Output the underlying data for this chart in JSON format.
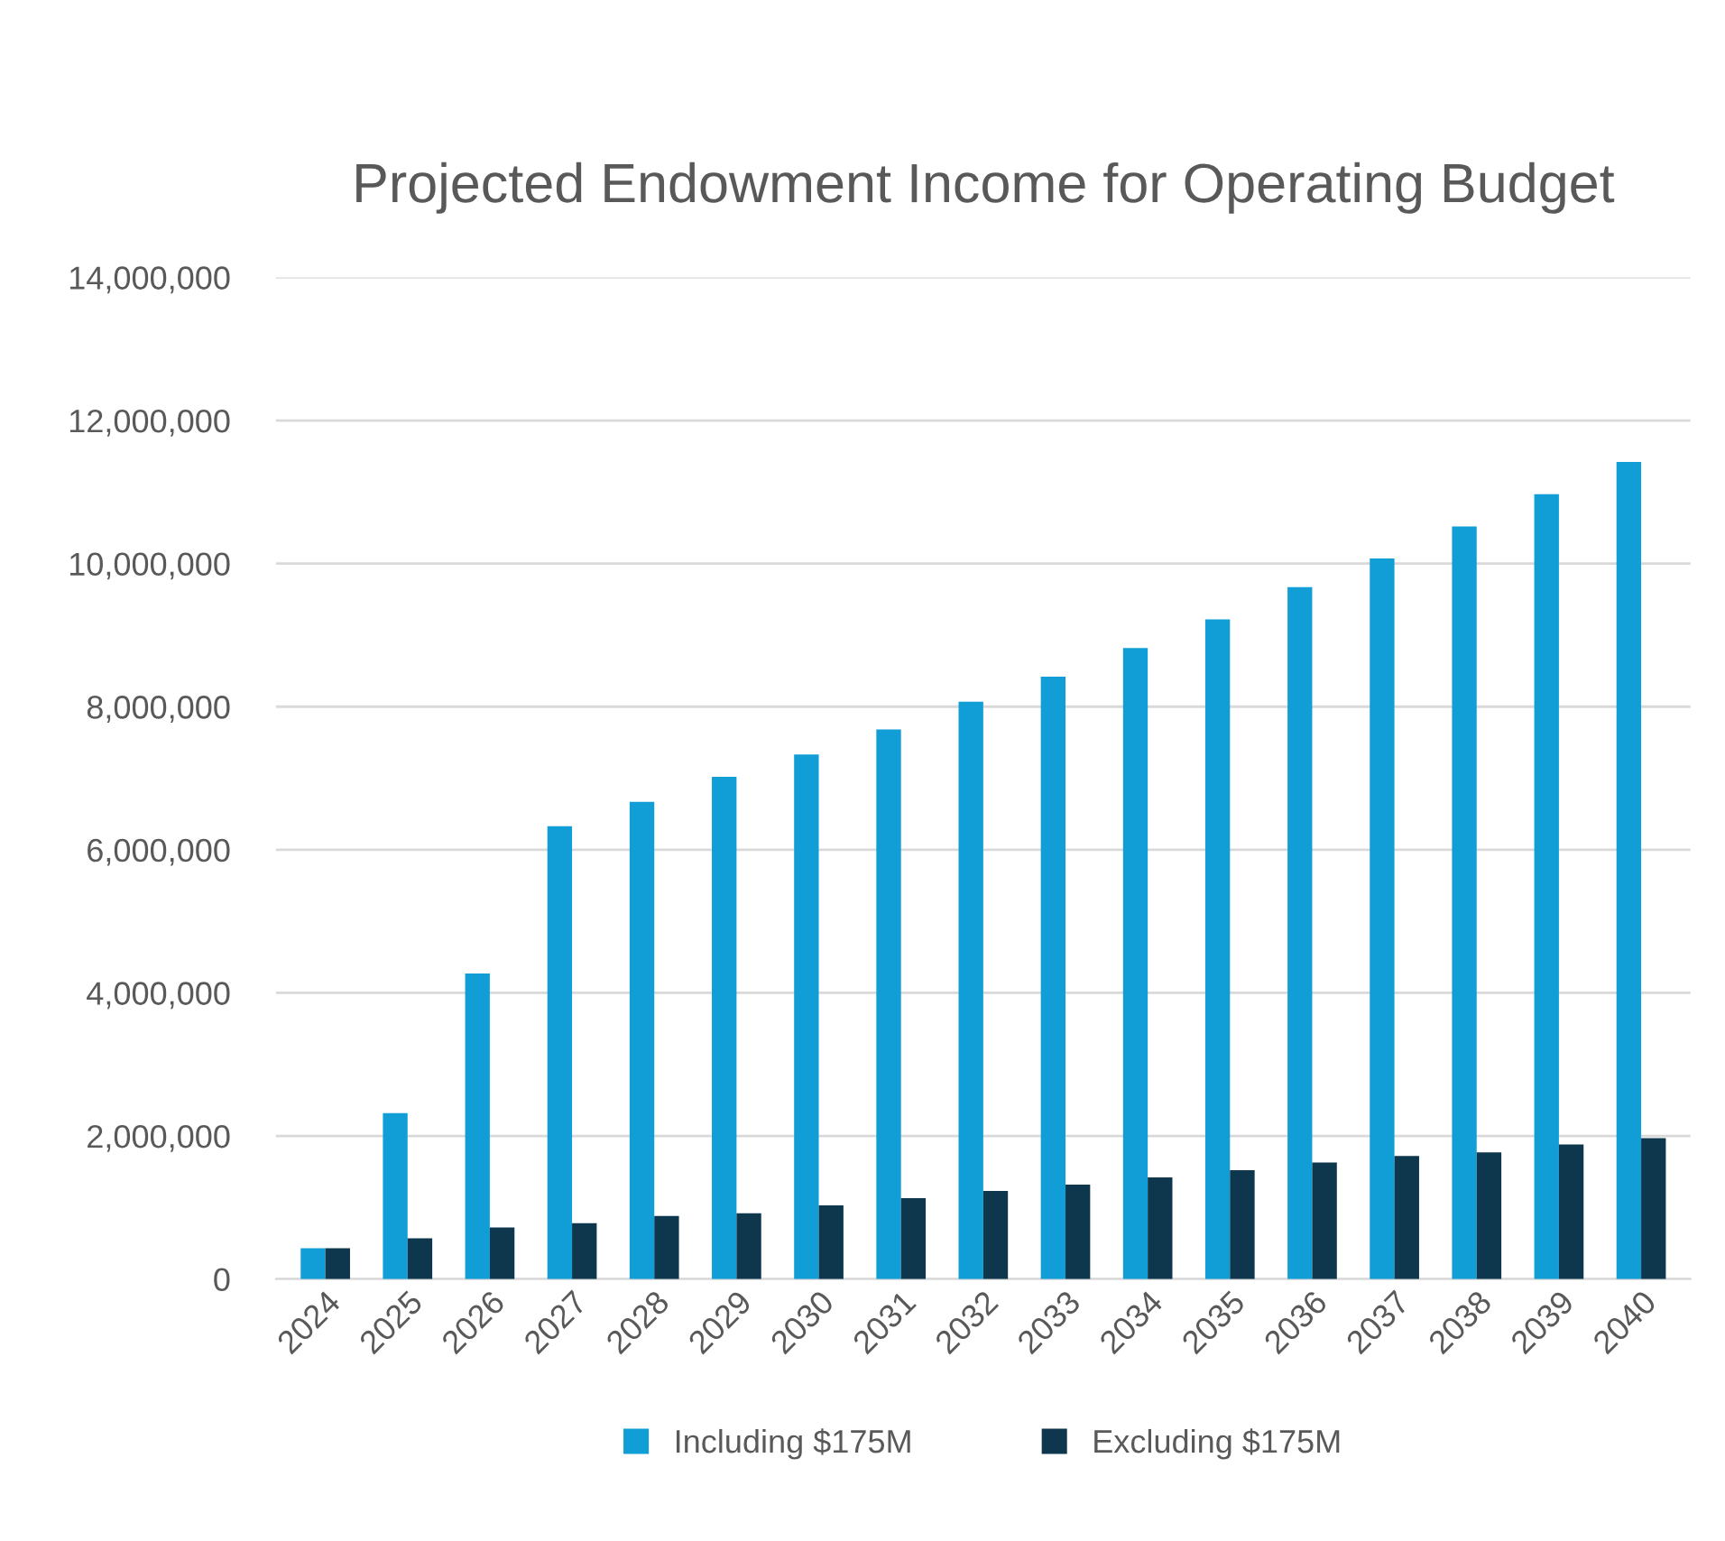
{
  "chart_data": {
    "type": "bar",
    "title": "Projected Endowment Income for Operating Budget",
    "categories": [
      "2024",
      "2025",
      "2026",
      "2027",
      "2028",
      "2029",
      "2030",
      "2031",
      "2032",
      "2033",
      "2034",
      "2035",
      "2036",
      "2037",
      "2038",
      "2039",
      "2040"
    ],
    "series": [
      {
        "name": "Including $175M",
        "color": "#119ed6",
        "values": [
          430000,
          2320000,
          4270000,
          6330000,
          6670000,
          7020000,
          7330000,
          7680000,
          8070000,
          8420000,
          8820000,
          9220000,
          9670000,
          10070000,
          10520000,
          10970000,
          11420000
        ]
      },
      {
        "name": "Excluding $175M",
        "color": "#0e374d",
        "values": [
          430000,
          570000,
          720000,
          780000,
          880000,
          920000,
          1030000,
          1130000,
          1230000,
          1320000,
          1420000,
          1520000,
          1630000,
          1720000,
          1770000,
          1880000,
          1970000
        ]
      }
    ],
    "ylim": [
      0,
      14000000
    ],
    "yticks": [
      {
        "value": 0,
        "label": "0"
      },
      {
        "value": 2000000,
        "label": "2,000,000"
      },
      {
        "value": 4000000,
        "label": "4,000,000"
      },
      {
        "value": 6000000,
        "label": "6,000,000"
      },
      {
        "value": 8000000,
        "label": "8,000,000"
      },
      {
        "value": 10000000,
        "label": "10,000,000"
      },
      {
        "value": 12000000,
        "label": "12,000,000"
      },
      {
        "value": 14000000,
        "label": "14,000,000"
      }
    ],
    "grid": "y",
    "legend": "bottom"
  }
}
